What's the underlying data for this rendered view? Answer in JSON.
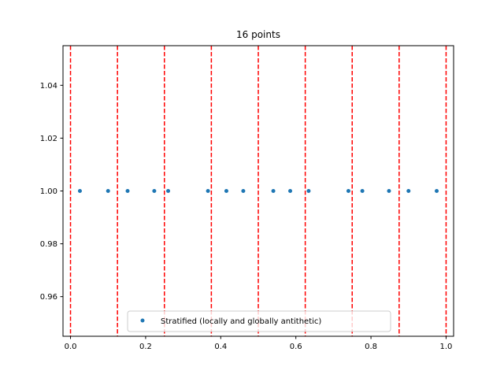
{
  "chart_data": {
    "type": "scatter",
    "title": "16 points",
    "xlabel": "",
    "ylabel": "",
    "xlim": [
      -0.02,
      1.02
    ],
    "ylim": [
      0.945,
      1.055
    ],
    "x_ticks": [
      0.0,
      0.2,
      0.4,
      0.6,
      0.8,
      1.0
    ],
    "x_tick_labels": [
      "0.0",
      "0.2",
      "0.4",
      "0.6",
      "0.8",
      "1.0"
    ],
    "y_ticks": [
      0.96,
      0.98,
      1.0,
      1.02,
      1.04
    ],
    "y_tick_labels": [
      "0.96",
      "0.98",
      "1.00",
      "1.02",
      "1.04"
    ],
    "grid": false,
    "legend_position": "lower center",
    "series": [
      {
        "name": "Stratified (locally and globally antithetic)",
        "color": "#1f77b4",
        "marker": "circle",
        "x": [
          0.025,
          0.1,
          0.152,
          0.223,
          0.26,
          0.366,
          0.415,
          0.46,
          0.54,
          0.585,
          0.634,
          0.74,
          0.777,
          0.848,
          0.9,
          0.975
        ],
        "y": [
          1.0,
          1.0,
          1.0,
          1.0,
          1.0,
          1.0,
          1.0,
          1.0,
          1.0,
          1.0,
          1.0,
          1.0,
          1.0,
          1.0,
          1.0,
          1.0
        ]
      }
    ],
    "vlines": {
      "x": [
        0.0,
        0.125,
        0.25,
        0.375,
        0.5,
        0.625,
        0.75,
        0.875,
        1.0
      ],
      "color": "#ff0000",
      "style": "dashed"
    }
  }
}
